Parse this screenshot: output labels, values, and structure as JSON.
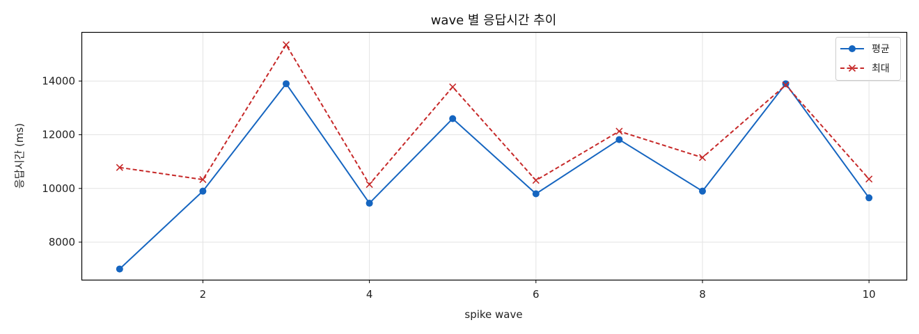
{
  "chart_data": {
    "type": "line",
    "title": "wave 별 응답시간 추이",
    "xlabel": "spike wave",
    "ylabel": "응답시간 (ms)",
    "x": [
      1,
      2,
      3,
      4,
      5,
      6,
      7,
      8,
      9,
      10
    ],
    "xticks": [
      2,
      4,
      6,
      8,
      10
    ],
    "yticks": [
      8000,
      10000,
      12000,
      14000
    ],
    "xlim": [
      0.55,
      10.45
    ],
    "ylim": [
      6600,
      15800
    ],
    "grid": true,
    "legend_position": "top-right",
    "series": [
      {
        "name": "평균",
        "values": [
          7000,
          9900,
          13900,
          9450,
          12600,
          9800,
          11820,
          9900,
          13900,
          9650
        ],
        "color": "#1565c0",
        "marker": "circle",
        "line_style": "solid"
      },
      {
        "name": "최대",
        "values": [
          10780,
          10330,
          15350,
          10150,
          13780,
          10300,
          12130,
          11150,
          13850,
          10350
        ],
        "color": "#c62828",
        "marker": "x",
        "line_style": "dashed"
      }
    ]
  }
}
